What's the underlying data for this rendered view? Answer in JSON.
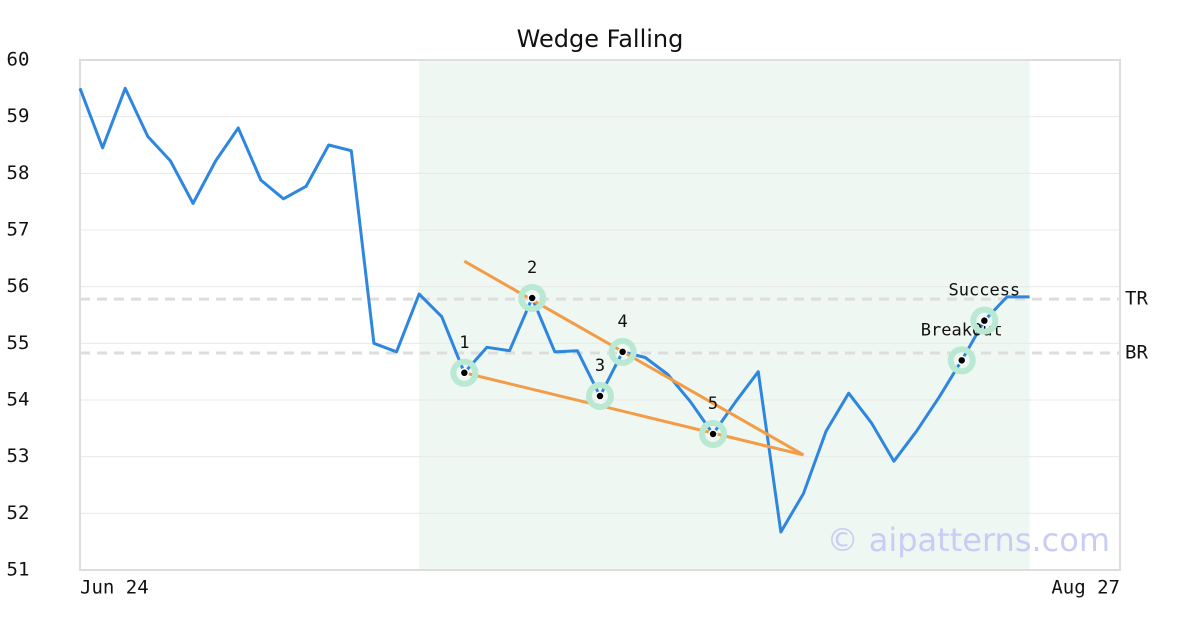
{
  "chart_data": {
    "type": "line",
    "title": "Wedge Falling",
    "watermark": "© aipatterns.com",
    "xlim": [
      0,
      46
    ],
    "xticks": [
      {
        "value": 0,
        "label": "Jun 24"
      },
      {
        "value": 46,
        "label": "Aug 27"
      }
    ],
    "ylim": [
      51,
      60
    ],
    "yticks": [
      51,
      52,
      53,
      54,
      55,
      56,
      57,
      58,
      59,
      60
    ],
    "grid": true,
    "color": "#2e86de",
    "values": [
      59.5,
      58.45,
      59.5,
      58.65,
      58.22,
      57.47,
      58.22,
      58.8,
      57.88,
      57.55,
      57.77,
      58.5,
      58.4,
      55.0,
      54.85,
      55.87,
      55.47,
      54.48,
      54.93,
      54.87,
      55.8,
      54.85,
      54.87,
      54.07,
      54.85,
      54.75,
      54.45,
      53.97,
      53.4,
      53.97,
      54.5,
      51.67,
      52.35,
      53.45,
      54.12,
      53.6,
      52.92,
      53.45,
      54.05,
      54.7,
      55.4,
      55.82,
      55.82
    ],
    "shaded_range": [
      15,
      42
    ],
    "shade_color": "#eef7f2",
    "hlines": [
      {
        "label": "TR",
        "value": 55.78
      },
      {
        "label": "BR",
        "value": 54.83
      }
    ],
    "trendlines": [
      {
        "color": "#f39c45",
        "x": [
          17,
          32
        ],
        "values": [
          56.45,
          53.03
        ]
      },
      {
        "color": "#f39c45",
        "x": [
          17,
          32
        ],
        "values": [
          54.48,
          53.03
        ]
      }
    ],
    "pattern_points": [
      {
        "label": "1",
        "x": 17,
        "value": 54.48
      },
      {
        "label": "2",
        "x": 20,
        "value": 55.8
      },
      {
        "label": "3",
        "x": 23,
        "value": 54.07
      },
      {
        "label": "4",
        "x": 24,
        "value": 54.85
      },
      {
        "label": "5",
        "x": 28,
        "value": 53.4
      },
      {
        "label": "BreakOut",
        "x": 39,
        "value": 54.7
      },
      {
        "label": "Success",
        "x": 40,
        "value": 55.4
      }
    ]
  }
}
